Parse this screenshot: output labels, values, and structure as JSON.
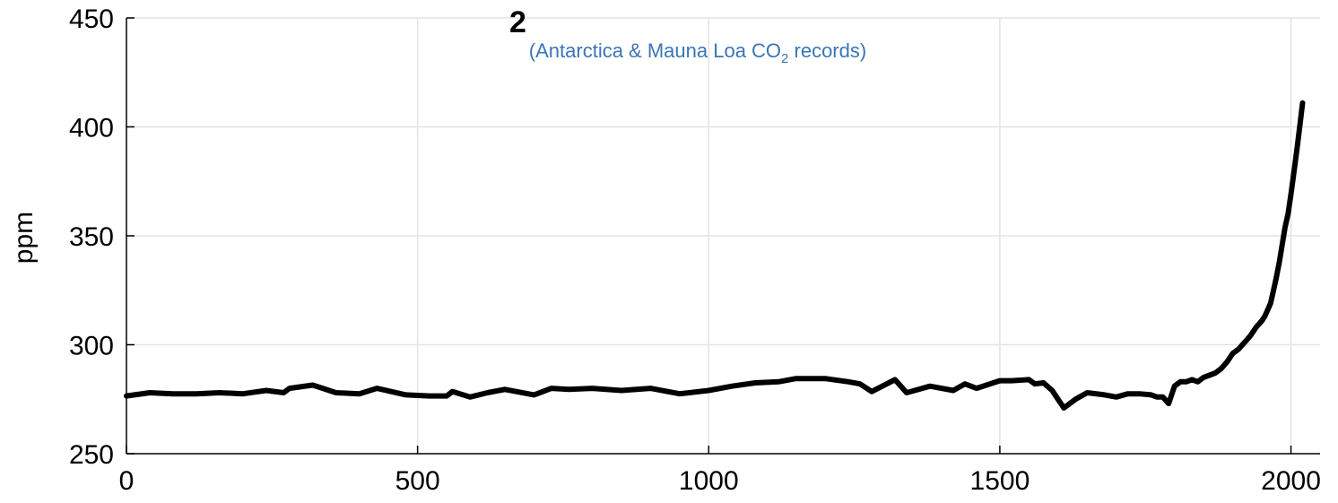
{
  "chart_data": {
    "type": "line",
    "title": "",
    "subtitle_prefix": "(Antarctica & Mauna Loa CO",
    "subtitle_sub": "2",
    "subtitle_suffix": " records)",
    "title_fragment": "2",
    "xlabel": "",
    "ylabel": "ppm",
    "xlim": [
      0,
      2020
    ],
    "ylim": [
      250,
      450
    ],
    "xticks": [
      0,
      500,
      1000,
      1500,
      2000
    ],
    "yticks": [
      250,
      300,
      350,
      400,
      450
    ],
    "grid": true,
    "colors": {
      "line": "#000000",
      "subtitle": "#3a75b5",
      "grid": "#e3e3e3",
      "axis": "#000000"
    },
    "series": [
      {
        "x": [
          0,
          40,
          80,
          120,
          160,
          200,
          240,
          270,
          280,
          320,
          360,
          400,
          430,
          480,
          520,
          550,
          560,
          590,
          620,
          650,
          700,
          730,
          760,
          800,
          850,
          900,
          950,
          1000,
          1040,
          1080,
          1120,
          1150,
          1200,
          1240,
          1260,
          1280,
          1320,
          1340,
          1380,
          1420,
          1440,
          1460,
          1500,
          1520,
          1550,
          1560,
          1575,
          1590,
          1600,
          1610,
          1630,
          1650,
          1680,
          1700,
          1720,
          1740,
          1760,
          1770,
          1780,
          1790,
          1800,
          1810,
          1820,
          1830,
          1840,
          1850,
          1860,
          1870,
          1880,
          1890,
          1900,
          1910,
          1920,
          1930,
          1940,
          1950,
          1955,
          1960,
          1965,
          1970,
          1975,
          1980,
          1985,
          1990,
          1995,
          2000,
          2005,
          2010,
          2015,
          2020
        ],
        "y": [
          276.5,
          278,
          277.5,
          277.5,
          278,
          277.5,
          279,
          278,
          280,
          281.5,
          278,
          277.5,
          280,
          277,
          276.5,
          276.5,
          278.5,
          276,
          278,
          279.5,
          277,
          280,
          279.5,
          280,
          279,
          280,
          277.5,
          279,
          281,
          282.5,
          283,
          284.5,
          284.5,
          283,
          282,
          278.5,
          284,
          278,
          281,
          279,
          282,
          280,
          283.5,
          283.5,
          284,
          282,
          282.5,
          279,
          275,
          271,
          275,
          278,
          277,
          276,
          277.5,
          277.5,
          277,
          276,
          276,
          273,
          281,
          283,
          283,
          284,
          283,
          285,
          286,
          287,
          289,
          292,
          296,
          298,
          301,
          304,
          308,
          311,
          313,
          316,
          319,
          325,
          331,
          338,
          346,
          354,
          360,
          369,
          379,
          389,
          400,
          411
        ]
      }
    ]
  }
}
